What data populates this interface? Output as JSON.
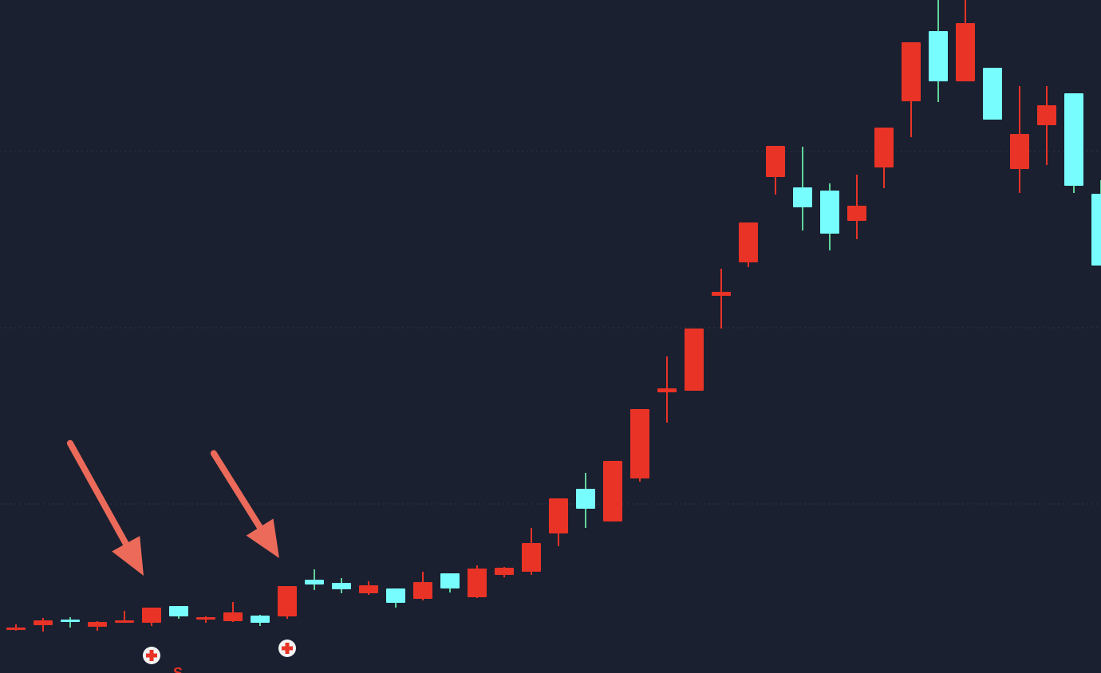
{
  "chart_data": {
    "type": "candlestick",
    "title": "",
    "xlabel": "",
    "ylabel": "",
    "ylim": [
      0,
      84.4
    ],
    "grid": {
      "horizontal": true,
      "style": "dotted",
      "levels": [
        65.4,
        43.3,
        21.2
      ]
    },
    "colors": {
      "background": "#1a2030",
      "up": "#e93326",
      "down": "#77fdfd",
      "down_wick": "#5fd39a",
      "arrow": "#ec6a5a",
      "grid": "#2c3446",
      "marker_fill": "#ffffff",
      "marker_cross": "#e93326"
    },
    "fields": [
      "open",
      "high",
      "low",
      "close"
    ],
    "candles": [
      [
        5.5,
        6.1,
        5.3,
        5.7
      ],
      [
        6.0,
        6.9,
        5.2,
        6.6
      ],
      [
        6.7,
        7.0,
        5.7,
        6.4
      ],
      [
        5.8,
        6.5,
        5.3,
        6.4
      ],
      [
        6.4,
        7.8,
        6.3,
        6.6
      ],
      [
        6.3,
        8.2,
        5.9,
        8.2
      ],
      [
        8.4,
        8.4,
        6.8,
        7.1
      ],
      [
        6.7,
        7.1,
        6.3,
        7.0
      ],
      [
        6.5,
        8.9,
        6.4,
        7.6
      ],
      [
        7.2,
        7.3,
        5.9,
        6.3
      ],
      [
        7.1,
        10.9,
        6.8,
        10.9
      ],
      [
        11.7,
        13.0,
        10.4,
        11.1
      ],
      [
        11.3,
        11.9,
        10.0,
        10.5
      ],
      [
        10.0,
        11.5,
        9.8,
        11.0
      ],
      [
        10.6,
        10.6,
        8.2,
        8.8
      ],
      [
        9.3,
        12.7,
        9.1,
        11.4
      ],
      [
        12.5,
        12.5,
        10.1,
        10.6
      ],
      [
        9.5,
        13.5,
        9.4,
        13.1
      ],
      [
        12.3,
        13.3,
        12.0,
        13.2
      ],
      [
        12.7,
        18.2,
        12.3,
        16.3
      ],
      [
        17.5,
        21.9,
        15.9,
        21.9
      ],
      [
        23.1,
        25.1,
        18.2,
        20.6
      ],
      [
        19.0,
        26.6,
        19.0,
        26.6
      ],
      [
        24.4,
        33.1,
        24.0,
        33.1
      ],
      [
        35.2,
        39.7,
        31.4,
        35.7
      ],
      [
        35.4,
        43.2,
        35.4,
        43.2
      ],
      [
        47.3,
        50.7,
        43.2,
        47.8
      ],
      [
        51.5,
        56.5,
        50.9,
        56.5
      ],
      [
        62.2,
        66.1,
        60.0,
        66.1
      ],
      [
        60.9,
        66.0,
        55.5,
        58.4
      ],
      [
        60.5,
        61.4,
        53.0,
        55.1
      ],
      [
        56.7,
        62.5,
        54.4,
        58.6
      ],
      [
        63.4,
        68.4,
        60.8,
        68.4
      ],
      [
        71.7,
        79.1,
        67.2,
        79.1
      ],
      [
        80.5,
        84.4,
        71.6,
        74.2
      ],
      [
        74.2,
        84.4,
        74.2,
        81.5
      ],
      [
        75.9,
        75.9,
        69.4,
        69.4
      ],
      [
        63.2,
        73.6,
        60.2,
        67.6
      ],
      [
        68.7,
        73.6,
        63.7,
        71.2
      ],
      [
        72.7,
        72.7,
        60.2,
        61.1
      ],
      [
        60.1,
        61.8,
        51.1,
        51.1
      ]
    ],
    "annotations": {
      "arrows_point_to_candles": [
        6,
        11
      ],
      "cross_markers_below_candles": [
        6,
        11
      ],
      "signal_label": {
        "text": "S",
        "candle": 7
      }
    }
  }
}
